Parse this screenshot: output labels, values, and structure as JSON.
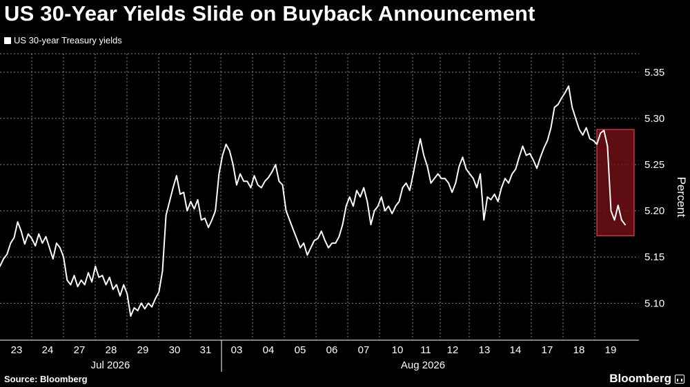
{
  "header": {
    "title": "US 30-Year Yields Slide on Buyback Announcement",
    "legend_label": "US 30-year Treasury yields"
  },
  "footer": {
    "source": "Source: Bloomberg",
    "brand": "Bloomberg"
  },
  "colors": {
    "background": "#000000",
    "line": "#ffffff",
    "highlight_fill": "#6e0f16",
    "highlight_border": "#e04050",
    "grid": "#8a8a8a"
  },
  "chart_data": {
    "type": "line",
    "title": "US 30-Year Yields Slide on Buyback Announcement",
    "ylabel": "Percent",
    "xlabel": "",
    "ylim": [
      5.06,
      5.37
    ],
    "yticks": [
      5.1,
      5.15,
      5.2,
      5.25,
      5.3,
      5.35
    ],
    "ytick_labels": [
      "5.10",
      "5.15",
      "5.20",
      "5.25",
      "5.30",
      "5.35"
    ],
    "grid": "dashed vertical and horizontal",
    "legend_position": "top-left",
    "x_day_labels": [
      "23",
      "24",
      "27",
      "28",
      "29",
      "30",
      "31",
      "03",
      "04",
      "05",
      "06",
      "07",
      "10",
      "11",
      "12",
      "13",
      "14",
      "17",
      "18",
      "19"
    ],
    "x_month_labels": [
      "Jul 2026",
      "Aug 2026"
    ],
    "highlight": {
      "label": "",
      "y_range": [
        5.173,
        5.288
      ]
    },
    "series": [
      {
        "name": "US 30-year Treasury yields",
        "values": [
          5.14,
          5.148,
          5.153,
          5.165,
          5.171,
          5.188,
          5.178,
          5.164,
          5.175,
          5.17,
          5.162,
          5.175,
          5.165,
          5.172,
          5.16,
          5.148,
          5.165,
          5.16,
          5.15,
          5.125,
          5.12,
          5.13,
          5.118,
          5.125,
          5.12,
          5.133,
          5.123,
          5.14,
          5.128,
          5.13,
          5.12,
          5.128,
          5.115,
          5.12,
          5.108,
          5.12,
          5.11,
          5.086,
          5.095,
          5.092,
          5.1,
          5.094,
          5.1,
          5.096,
          5.105,
          5.112,
          5.135,
          5.195,
          5.21,
          5.225,
          5.238,
          5.218,
          5.22,
          5.2,
          5.21,
          5.202,
          5.212,
          5.19,
          5.192,
          5.182,
          5.19,
          5.2,
          5.24,
          5.26,
          5.272,
          5.265,
          5.25,
          5.228,
          5.24,
          5.232,
          5.232,
          5.225,
          5.238,
          5.228,
          5.225,
          5.232,
          5.236,
          5.242,
          5.25,
          5.232,
          5.228,
          5.2,
          5.19,
          5.18,
          5.17,
          5.16,
          5.165,
          5.152,
          5.16,
          5.168,
          5.17,
          5.178,
          5.168,
          5.16,
          5.165,
          5.165,
          5.172,
          5.185,
          5.205,
          5.215,
          5.205,
          5.222,
          5.215,
          5.225,
          5.21,
          5.185,
          5.2,
          5.205,
          5.215,
          5.2,
          5.205,
          5.197,
          5.205,
          5.21,
          5.225,
          5.23,
          5.222,
          5.24,
          5.26,
          5.278,
          5.26,
          5.248,
          5.23,
          5.235,
          5.24,
          5.235,
          5.235,
          5.23,
          5.22,
          5.23,
          5.248,
          5.258,
          5.245,
          5.24,
          5.235,
          5.225,
          5.24,
          5.19,
          5.215,
          5.212,
          5.218,
          5.21,
          5.225,
          5.235,
          5.23,
          5.24,
          5.245,
          5.258,
          5.27,
          5.26,
          5.262,
          5.255,
          5.246,
          5.258,
          5.268,
          5.276,
          5.29,
          5.312,
          5.315,
          5.322,
          5.328,
          5.335,
          5.312,
          5.3,
          5.288,
          5.282,
          5.29,
          5.278,
          5.276,
          5.272,
          5.284,
          5.287,
          5.27,
          5.2,
          5.19,
          5.206,
          5.19,
          5.185
        ]
      }
    ]
  }
}
